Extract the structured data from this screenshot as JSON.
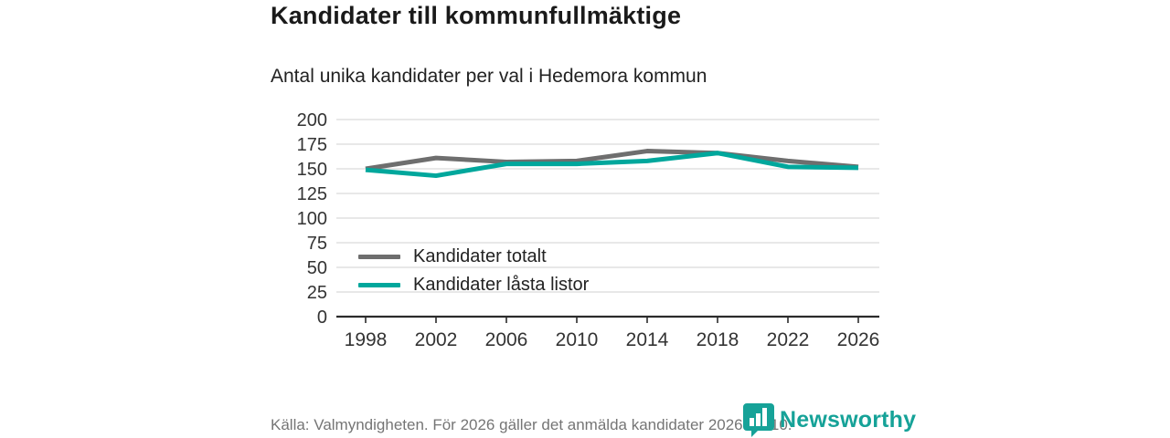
{
  "header": {
    "title": "Kandidater till kommunfullmäktige",
    "subtitle": "Antal unika kandidater per val i Hedemora kommun"
  },
  "chart_data": {
    "type": "line",
    "title": "Kandidater till kommunfullmäktige",
    "subtitle": "Antal unika kandidater per val i Hedemora kommun",
    "x": [
      1998,
      2002,
      2006,
      2010,
      2014,
      2018,
      2022,
      2026
    ],
    "series": [
      {
        "name": "Kandidater totalt",
        "color": "#6e6e6e",
        "values": [
          150,
          161,
          157,
          158,
          168,
          166,
          158,
          152
        ]
      },
      {
        "name": "Kandidater låsta listor",
        "color": "#00a79c",
        "values": [
          149,
          143,
          155,
          155,
          158,
          166,
          152,
          151
        ]
      }
    ],
    "xlabel": "",
    "ylabel": "",
    "ylim": [
      0,
      200
    ],
    "ytick_step": 25,
    "grid": "horizontal",
    "legend_position": "inside-left-middle"
  },
  "footer": {
    "source": "Källa: Valmyndigheten. För 2026 gäller det anmälda kandidater 2026-04-10."
  },
  "logo": {
    "text": "Newsworthy",
    "icon": "speech-bubble-bar-chart-icon",
    "color": "#16a298"
  },
  "colors": {
    "background": "#ffffff",
    "gridline": "#d9d9d9",
    "axis_line": "#2b2b2b",
    "axis_text": "#333333",
    "series_total": "#6e6e6e",
    "series_locked": "#00a79c",
    "footer_text": "#757575",
    "brand_teal": "#16a298"
  }
}
